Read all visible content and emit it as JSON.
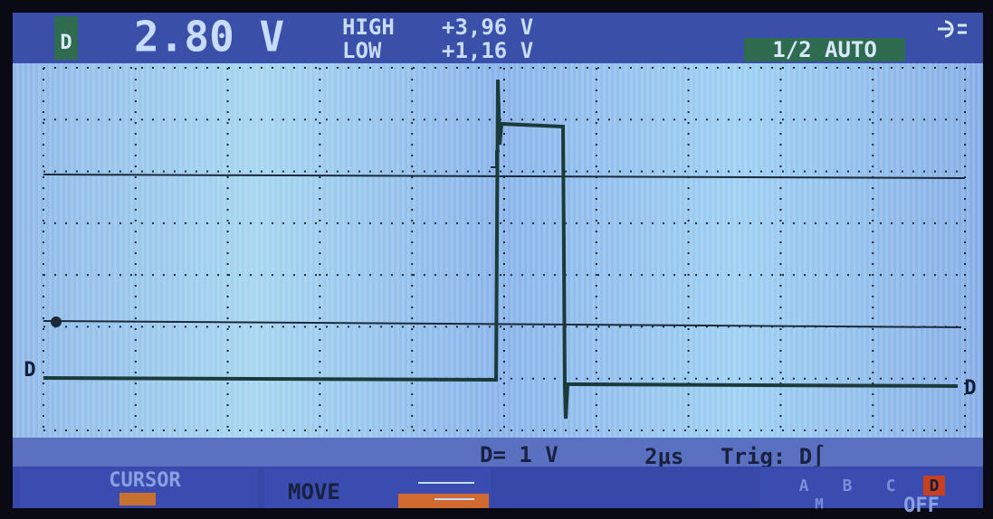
{
  "header": {
    "channel": "D",
    "reading": "2.80 V",
    "high_label": "HIGH",
    "high_value": "+3,96 V",
    "low_label": "LOW",
    "low_value": "+1,16 V",
    "mode": "1/2 AUTO"
  },
  "screen": {
    "left_marker": "D",
    "right_marker": "D"
  },
  "status": {
    "scale": "D= 1 V",
    "timebase": "2µs",
    "trigger": "Trig: D∫"
  },
  "menu": {
    "cursor": "CURSOR",
    "move": "MOVE",
    "channels": [
      "A",
      "B",
      "C",
      "D"
    ],
    "math": "M",
    "off": "OFF"
  }
}
